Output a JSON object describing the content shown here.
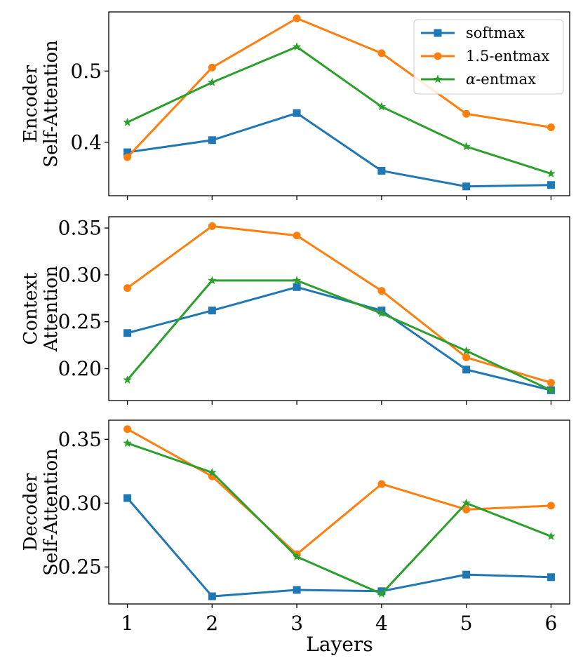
{
  "chart_data": {
    "type": "line",
    "x": [
      1,
      2,
      3,
      4,
      5,
      6
    ],
    "xlabel": "Layers",
    "xticks": [
      1,
      2,
      3,
      4,
      5,
      6
    ],
    "xlim": [
      0.78,
      6.22
    ],
    "legend": {
      "placement": "top-right",
      "entries": [
        {
          "name": "softmax",
          "prefix": "",
          "italic": "",
          "suffix": "softmax"
        },
        {
          "name": "1.5-entmax",
          "prefix": "",
          "italic": "",
          "suffix": "1.5-entmax"
        },
        {
          "name": "α-entmax",
          "prefix": "",
          "italic": "α",
          "suffix": "-entmax"
        }
      ]
    },
    "series_style": [
      {
        "name": "softmax",
        "color": "#1f77b4",
        "marker": "square"
      },
      {
        "name": "1.5-entmax",
        "color": "#ff7f0e",
        "marker": "circle"
      },
      {
        "name": "α-entmax",
        "color": "#2ca02c",
        "marker": "star"
      }
    ],
    "panels": [
      {
        "ylabel": [
          "Encoder",
          "Self-Attention"
        ],
        "ylim": [
          0.325,
          0.583
        ],
        "yticks": [
          0.4,
          0.5
        ],
        "ytick_labels": [
          "0.4",
          "0.5"
        ],
        "series": [
          {
            "name": "softmax",
            "values": [
              0.386,
              0.403,
              0.441,
              0.36,
              0.338,
              0.34
            ]
          },
          {
            "name": "1.5-entmax",
            "values": [
              0.379,
              0.505,
              0.574,
              0.525,
              0.44,
              0.421
            ]
          },
          {
            "name": "α-entmax",
            "values": [
              0.428,
              0.484,
              0.534,
              0.45,
              0.394,
              0.356
            ]
          }
        ]
      },
      {
        "ylabel": [
          "Context",
          "Attention"
        ],
        "ylim": [
          0.166,
          0.362
        ],
        "yticks": [
          0.2,
          0.25,
          0.3,
          0.35
        ],
        "ytick_labels": [
          "0.20",
          "0.25",
          "0.30",
          "0.35"
        ],
        "series": [
          {
            "name": "softmax",
            "values": [
              0.238,
              0.262,
              0.287,
              0.262,
              0.199,
              0.177
            ]
          },
          {
            "name": "1.5-entmax",
            "values": [
              0.286,
              0.352,
              0.342,
              0.283,
              0.212,
              0.185
            ]
          },
          {
            "name": "α-entmax",
            "values": [
              0.188,
              0.294,
              0.294,
              0.259,
              0.219,
              0.177
            ]
          }
        ]
      },
      {
        "ylabel": [
          "Decoder",
          "Self-Attention"
        ],
        "ylim": [
          0.221,
          0.365
        ],
        "yticks": [
          0.25,
          0.3,
          0.35
        ],
        "ytick_labels": [
          "0.25",
          "0.30",
          "0.35"
        ],
        "series": [
          {
            "name": "softmax",
            "values": [
              0.304,
              0.227,
              0.232,
              0.231,
              0.244,
              0.242
            ]
          },
          {
            "name": "1.5-entmax",
            "values": [
              0.358,
              0.321,
              0.26,
              0.315,
              0.295,
              0.298
            ]
          },
          {
            "name": "α-entmax",
            "values": [
              0.347,
              0.324,
              0.258,
              0.229,
              0.3,
              0.274
            ]
          }
        ]
      }
    ]
  }
}
